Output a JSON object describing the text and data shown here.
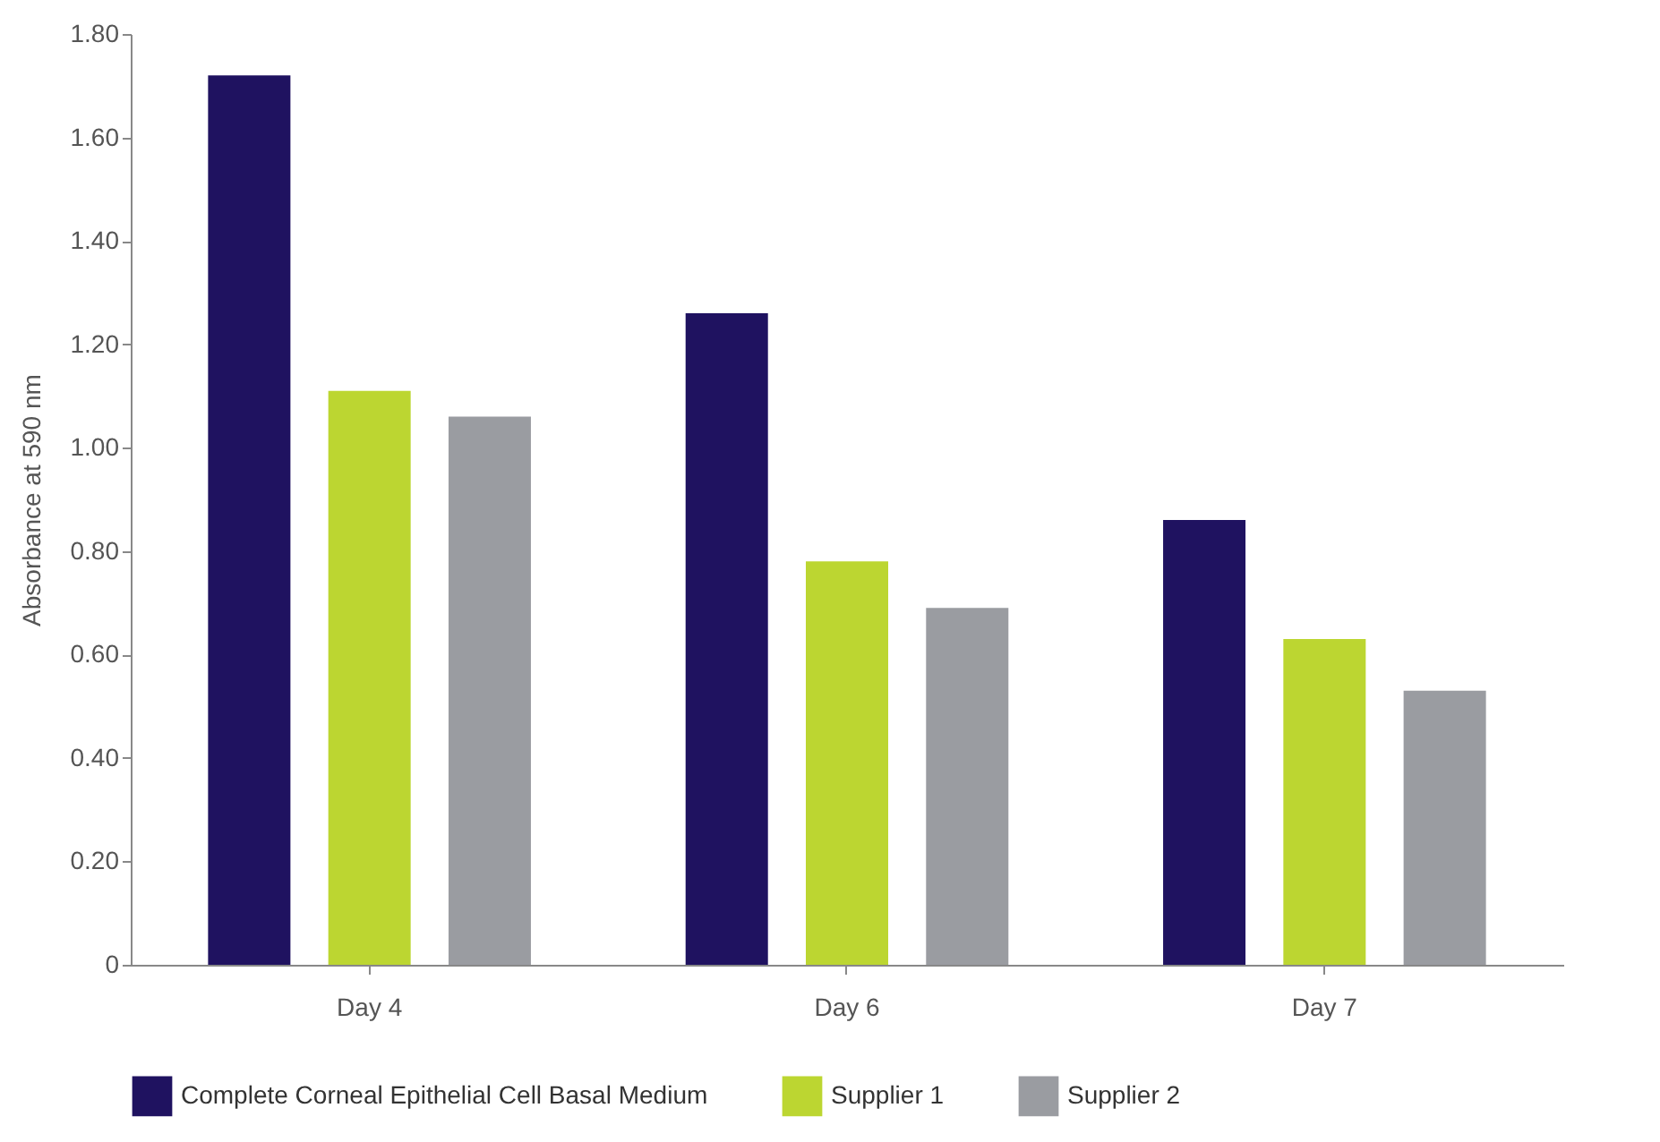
{
  "chart_data": {
    "type": "bar",
    "ylabel": "Absorbance at 590 nm",
    "categories": [
      "Day 4",
      "Day 6",
      "Day 7"
    ],
    "series": [
      {
        "name": "Complete Corneal Epithelial Cell Basal Medium",
        "color": "#1f1260",
        "values": [
          1.72,
          1.26,
          0.86
        ]
      },
      {
        "name": "Supplier 1",
        "color": "#bcd631",
        "values": [
          1.11,
          0.78,
          0.63
        ]
      },
      {
        "name": "Supplier 2",
        "color": "#9a9ca1",
        "values": [
          1.06,
          0.69,
          0.53
        ]
      }
    ],
    "ylim": [
      0,
      1.8
    ],
    "yticks": [
      {
        "value": 0,
        "label": "0"
      },
      {
        "value": 0.2,
        "label": "0.20"
      },
      {
        "value": 0.4,
        "label": "0.40"
      },
      {
        "value": 0.6,
        "label": "0.60"
      },
      {
        "value": 0.8,
        "label": "0.80"
      },
      {
        "value": 1,
        "label": "1.00"
      },
      {
        "value": 1.2,
        "label": "1.20"
      },
      {
        "value": 1.4,
        "label": "1.40"
      },
      {
        "value": 1.6,
        "label": "1.60"
      },
      {
        "value": 1.8,
        "label": "1.80"
      }
    ],
    "grid": false,
    "legend": "bottom"
  }
}
